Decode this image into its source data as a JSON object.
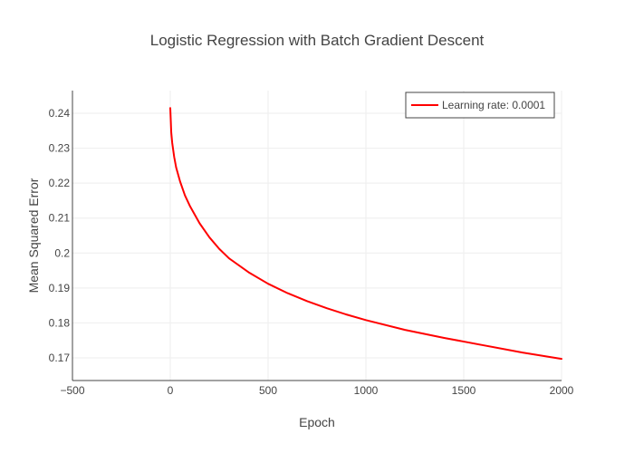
{
  "chart_data": {
    "type": "line",
    "title": "Logistic Regression with Batch Gradient Descent",
    "xlabel": "Epoch",
    "ylabel": "Mean Squared Error",
    "xlim": [
      -500,
      2000
    ],
    "ylim": [
      0.1635,
      0.2465
    ],
    "x_ticks": [
      -500,
      0,
      500,
      1000,
      1500,
      2000
    ],
    "x_tick_labels": [
      "−500",
      "0",
      "500",
      "1000",
      "1500",
      "2000"
    ],
    "y_ticks": [
      0.17,
      0.18,
      0.19,
      0.2,
      0.21,
      0.22,
      0.23,
      0.24
    ],
    "y_tick_labels": [
      "0.17",
      "0.18",
      "0.19",
      "0.2",
      "0.21",
      "0.22",
      "0.23",
      "0.24"
    ],
    "grid": true,
    "legend_position": "top-right",
    "series": [
      {
        "name": "Learning rate: 0.0001",
        "color": "#ff0000",
        "x": [
          0,
          5,
          10,
          20,
          30,
          50,
          75,
          100,
          150,
          200,
          250,
          300,
          400,
          500,
          600,
          700,
          800,
          900,
          1000,
          1200,
          1400,
          1600,
          1800,
          2000
        ],
        "y": [
          0.2415,
          0.2345,
          0.2315,
          0.2275,
          0.2245,
          0.2205,
          0.2165,
          0.2135,
          0.2085,
          0.2045,
          0.2012,
          0.1985,
          0.1945,
          0.1912,
          0.1885,
          0.1862,
          0.1842,
          0.1824,
          0.1808,
          0.178,
          0.1757,
          0.1736,
          0.1715,
          0.1697
        ]
      }
    ]
  }
}
